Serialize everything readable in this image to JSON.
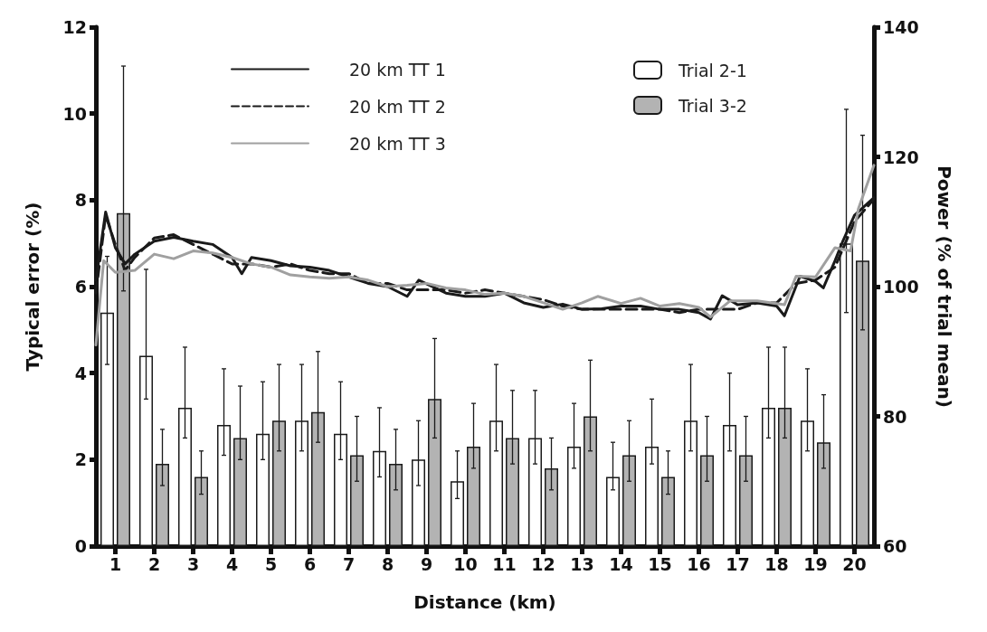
{
  "chart_data": {
    "type": "bar",
    "xlabel": "Distance (km)",
    "ylabel": "Typical error (%)",
    "y2label": "Power (% of trial mean)",
    "x": [
      0.5,
      1.5,
      2.5,
      3.5,
      4.5,
      5.5,
      6.5,
      7.5,
      8.5,
      9.5,
      10.5,
      11.5,
      12.5,
      13.5,
      14.5,
      15.5,
      16.5,
      17.5,
      18.5,
      19.5
    ],
    "xlim": [
      0,
      20
    ],
    "xticks": [
      {
        "value": 0.5,
        "label": "1"
      },
      {
        "value": 1.5,
        "label": "2"
      },
      {
        "value": 2.5,
        "label": "3"
      },
      {
        "value": 3.5,
        "label": "4"
      },
      {
        "value": 4.5,
        "label": "5"
      },
      {
        "value": 5.5,
        "label": "6"
      },
      {
        "value": 6.5,
        "label": "7"
      },
      {
        "value": 7.5,
        "label": "8"
      },
      {
        "value": 8.5,
        "label": "9"
      },
      {
        "value": 9.5,
        "label": "10"
      },
      {
        "value": 10.5,
        "label": "11"
      },
      {
        "value": 11.5,
        "label": "12"
      },
      {
        "value": 12.5,
        "label": "13"
      },
      {
        "value": 13.5,
        "label": "14"
      },
      {
        "value": 14.5,
        "label": "15"
      },
      {
        "value": 15.5,
        "label": "16"
      },
      {
        "value": 16.5,
        "label": "17"
      },
      {
        "value": 17.5,
        "label": "18"
      },
      {
        "value": 18.5,
        "label": "19"
      },
      {
        "value": 19.5,
        "label": "20"
      }
    ],
    "ylim": [
      0,
      12
    ],
    "yticks": [
      0,
      2,
      4,
      6,
      8,
      10,
      12
    ],
    "y2lim": [
      60,
      140
    ],
    "y2ticks": [
      60,
      80,
      100,
      120,
      140
    ],
    "grid": false,
    "legend": "top",
    "marker": "none",
    "series": [
      {
        "name": "20 km TT 1",
        "type": "line",
        "axis": "y2",
        "color": "#1a1a1a",
        "line_style": "solid",
        "x": [
          0,
          0.25,
          0.5,
          0.75,
          1,
          1.5,
          2,
          2.5,
          3,
          3.5,
          3.75,
          4,
          4.5,
          5,
          5.5,
          6,
          6.5,
          7,
          7.5,
          8,
          8.3,
          9,
          9.5,
          10,
          10.5,
          11,
          11.5,
          12,
          12.5,
          13,
          13.5,
          14,
          14.5,
          15,
          15.5,
          15.8,
          16.1,
          16.5,
          17,
          17.5,
          17.7,
          18.1,
          18.5,
          18.7,
          19,
          19.2,
          19.5,
          20
        ],
        "values": [
          101,
          111.5,
          106,
          103.5,
          105,
          107,
          107.6,
          107,
          106.5,
          104.5,
          102,
          104.5,
          104,
          103.2,
          103,
          102.5,
          101.5,
          100.5,
          100,
          98.5,
          101,
          99,
          98.5,
          98.5,
          99,
          97.5,
          96.8,
          97.3,
          96.5,
          96.6,
          97,
          97,
          96.5,
          96.5,
          96,
          95,
          98.6,
          97.2,
          97.5,
          97,
          95.5,
          101.6,
          100.8,
          99.8,
          104,
          107,
          111,
          113.7
        ]
      },
      {
        "name": "20 km TT 2",
        "type": "line",
        "axis": "y2",
        "color": "#1a1a1a",
        "line_style": "dashed",
        "x": [
          0,
          0.25,
          0.5,
          0.75,
          1,
          1.5,
          2,
          2.5,
          3,
          3.5,
          4,
          4.5,
          5,
          5.5,
          6,
          6.5,
          7,
          7.5,
          8,
          8.5,
          9,
          9.5,
          10,
          10.5,
          11,
          11.5,
          12,
          12.5,
          13,
          13.5,
          14,
          14.5,
          15,
          15.5,
          16,
          16.5,
          17,
          17.5,
          18,
          18.5,
          19,
          19.5,
          20
        ],
        "values": [
          99,
          111,
          106.5,
          102.5,
          104.5,
          107.5,
          108,
          106.5,
          105,
          103.5,
          103.5,
          103,
          103.5,
          102.5,
          102,
          102,
          100.5,
          100.5,
          99.5,
          99.5,
          99.5,
          99,
          99.5,
          99,
          98.5,
          98,
          97,
          96.5,
          96.5,
          96.5,
          96.5,
          96.5,
          96,
          96.5,
          96.5,
          96.5,
          97.5,
          97.5,
          100.5,
          101,
          103,
          110,
          113.5
        ]
      },
      {
        "name": "20 km TT 3",
        "type": "line",
        "axis": "y2",
        "color": "#a0a0a0",
        "line_style": "solid",
        "x": [
          0,
          0.2,
          0.5,
          1,
          1.5,
          2,
          2.5,
          3,
          3.5,
          4,
          4.5,
          5,
          5.5,
          6,
          6.5,
          7,
          7.5,
          8,
          8.5,
          9,
          9.5,
          10,
          10.5,
          11,
          11.5,
          12,
          12.5,
          12.9,
          13.5,
          14,
          14.5,
          15,
          15.5,
          15.8,
          16.3,
          17,
          17.7,
          18,
          18.5,
          19,
          19.4,
          19.6,
          20
        ],
        "values": [
          91,
          104,
          102.2,
          102.5,
          105,
          104.3,
          105.5,
          105.2,
          104.5,
          103.5,
          103,
          101.8,
          101.5,
          101.3,
          101.5,
          101,
          100,
          100.2,
          100.5,
          99.8,
          99.5,
          98.8,
          99,
          98.5,
          97.5,
          96.5,
          97.5,
          98.5,
          97.4,
          98.2,
          97,
          97.4,
          96.8,
          95.3,
          97.8,
          97.8,
          97.2,
          101.6,
          101.5,
          106,
          105.5,
          112,
          118.7
        ]
      },
      {
        "name": "Trial 2-1",
        "color": "#ffffff",
        "values": [
          5.4,
          4.4,
          3.2,
          2.8,
          2.6,
          2.9,
          2.6,
          2.2,
          2.0,
          1.5,
          2.9,
          2.5,
          2.3,
          1.6,
          2.3,
          2.9,
          2.8,
          3.2,
          2.9,
          7.0
        ],
        "errors": [
          [
            4.2,
            6.7
          ],
          [
            3.4,
            6.4
          ],
          [
            2.5,
            4.6
          ],
          [
            2.1,
            4.1
          ],
          [
            2.0,
            3.8
          ],
          [
            2.2,
            4.2
          ],
          [
            2.0,
            3.8
          ],
          [
            1.6,
            3.2
          ],
          [
            1.4,
            2.9
          ],
          [
            1.1,
            2.2
          ],
          [
            2.2,
            4.2
          ],
          [
            1.9,
            3.6
          ],
          [
            1.8,
            3.3
          ],
          [
            1.3,
            2.4
          ],
          [
            1.9,
            3.4
          ],
          [
            2.2,
            4.2
          ],
          [
            2.2,
            4.0
          ],
          [
            2.5,
            4.6
          ],
          [
            2.2,
            4.1
          ],
          [
            5.4,
            10.1
          ]
        ]
      },
      {
        "name": "Trial 3-2",
        "color": "#b3b3b3",
        "values": [
          7.7,
          1.9,
          1.6,
          2.5,
          2.9,
          3.1,
          2.1,
          1.9,
          3.4,
          2.3,
          2.5,
          1.8,
          3.0,
          2.1,
          1.6,
          2.1,
          2.1,
          3.2,
          2.4,
          6.6
        ],
        "errors": [
          [
            5.9,
            11.1
          ],
          [
            1.4,
            2.7
          ],
          [
            1.2,
            2.2
          ],
          [
            2.0,
            3.7
          ],
          [
            2.2,
            4.2
          ],
          [
            2.4,
            4.5
          ],
          [
            1.5,
            3.0
          ],
          [
            1.3,
            2.7
          ],
          [
            2.5,
            4.8
          ],
          [
            1.8,
            3.3
          ],
          [
            1.9,
            3.6
          ],
          [
            1.3,
            2.5
          ],
          [
            2.2,
            4.3
          ],
          [
            1.5,
            2.9
          ],
          [
            1.2,
            2.2
          ],
          [
            1.5,
            3.0
          ],
          [
            1.5,
            3.0
          ],
          [
            2.5,
            4.6
          ],
          [
            1.8,
            3.5
          ],
          [
            5.0,
            9.5
          ]
        ]
      }
    ]
  }
}
